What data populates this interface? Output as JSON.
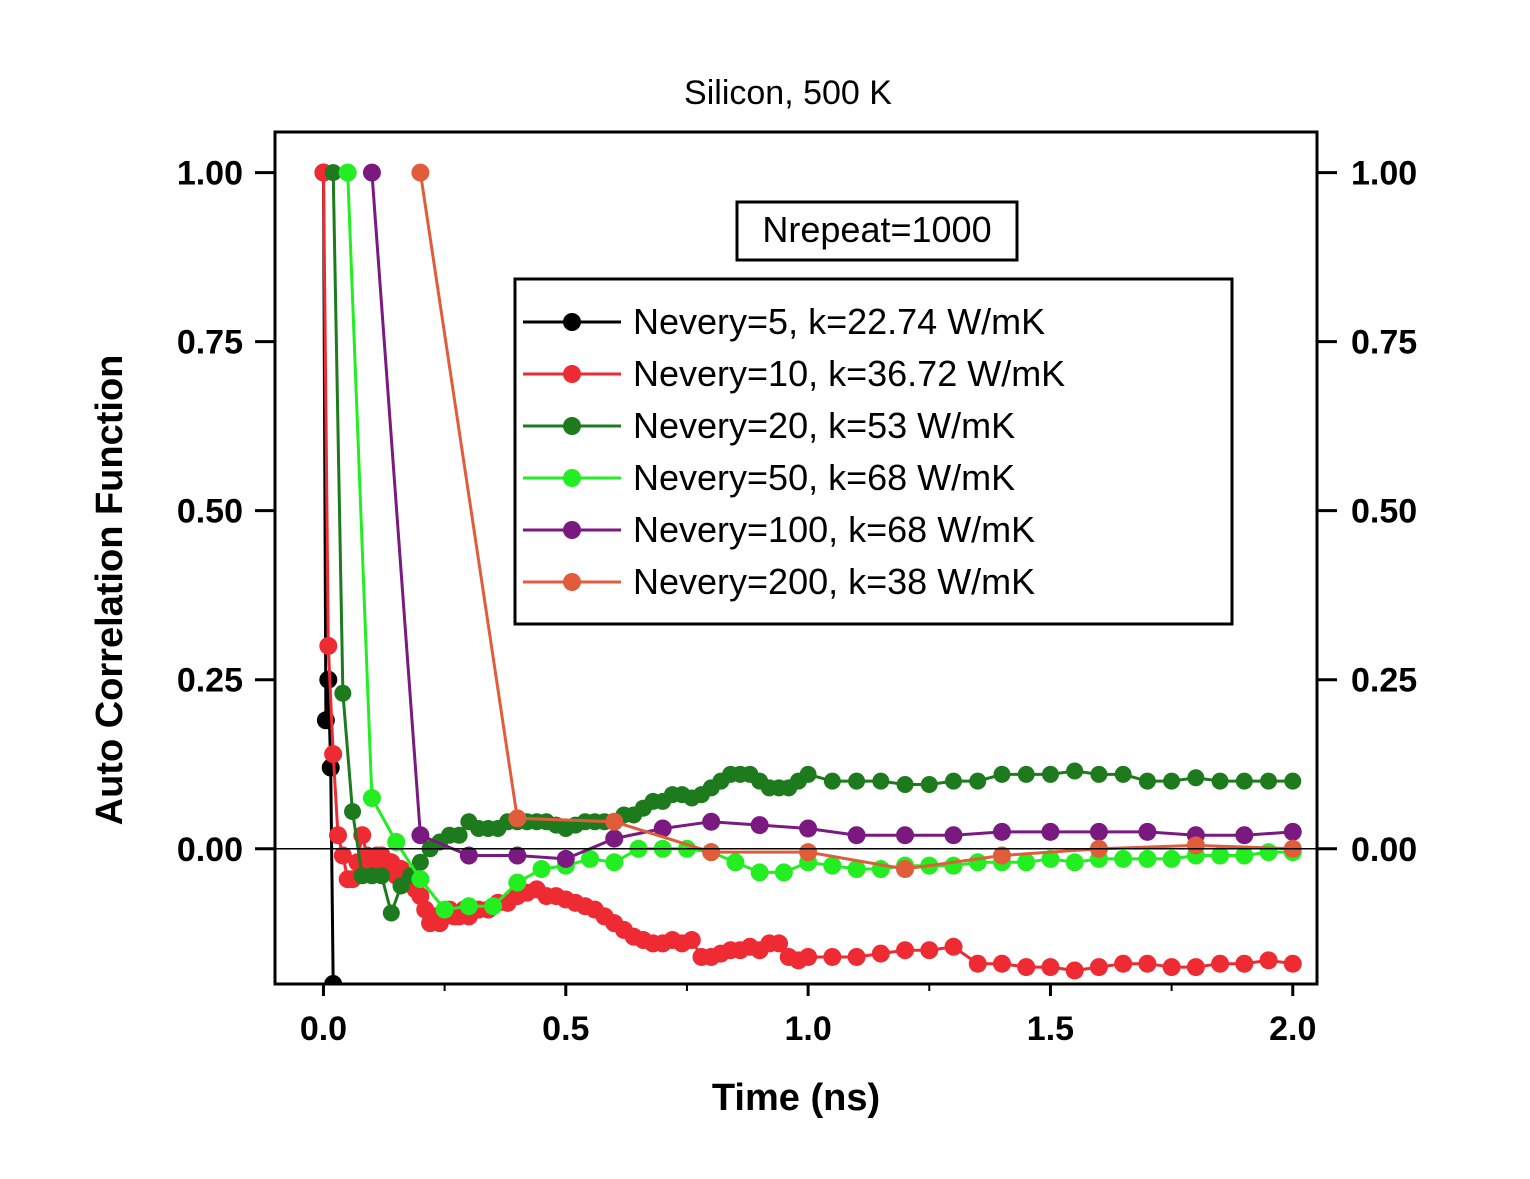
{
  "chart_data": {
    "type": "line",
    "title": "Silicon, 500 K",
    "xlabel": "Time (ns)",
    "ylabel": "Auto Correlation Function",
    "xlim": [
      -0.1,
      2.05
    ],
    "ylim": [
      -0.2,
      1.06
    ],
    "xticks": [
      "0.0",
      "0.5",
      "1.0",
      "1.5",
      "2.0"
    ],
    "xtick_values": [
      0,
      0.5,
      1.0,
      1.5,
      2.0
    ],
    "yticks": [
      "0.00",
      "0.25",
      "0.50",
      "0.75",
      "1.00"
    ],
    "ytick_values": [
      0,
      0.25,
      0.5,
      0.75,
      1.0
    ],
    "right_axis_mirror": true,
    "zero_line": true,
    "legend_position": "upper-right",
    "annotation": "Nrepeat=1000",
    "series": [
      {
        "name": "Nevery=5, k=22.74 W/mK",
        "color": "#000000",
        "x": [
          0.0,
          0.005,
          0.01,
          0.015,
          0.02
        ],
        "y": [
          1.0,
          0.19,
          0.25,
          0.12,
          -0.2
        ]
      },
      {
        "name": "Nevery=10, k=36.72 W/mK",
        "color": "#ee2a33",
        "x": [
          0.0,
          0.01,
          0.02,
          0.03,
          0.04,
          0.05,
          0.06,
          0.07,
          0.08,
          0.09,
          0.1,
          0.11,
          0.12,
          0.13,
          0.14,
          0.15,
          0.16,
          0.17,
          0.18,
          0.19,
          0.2,
          0.21,
          0.22,
          0.23,
          0.24,
          0.25,
          0.26,
          0.27,
          0.28,
          0.29,
          0.3,
          0.32,
          0.34,
          0.36,
          0.38,
          0.4,
          0.42,
          0.44,
          0.46,
          0.48,
          0.5,
          0.52,
          0.54,
          0.56,
          0.58,
          0.6,
          0.62,
          0.64,
          0.66,
          0.68,
          0.7,
          0.72,
          0.74,
          0.76,
          0.78,
          0.8,
          0.82,
          0.84,
          0.86,
          0.88,
          0.9,
          0.92,
          0.94,
          0.96,
          0.98,
          1.0,
          1.05,
          1.1,
          1.15,
          1.2,
          1.25,
          1.3,
          1.35,
          1.4,
          1.45,
          1.5,
          1.55,
          1.6,
          1.65,
          1.7,
          1.75,
          1.8,
          1.85,
          1.9,
          1.95,
          2.0
        ],
        "y": [
          1.0,
          0.3,
          0.14,
          0.02,
          -0.01,
          -0.045,
          -0.045,
          -0.02,
          0.02,
          -0.01,
          -0.02,
          -0.01,
          -0.01,
          -0.03,
          -0.02,
          -0.04,
          -0.03,
          -0.04,
          -0.05,
          -0.06,
          -0.07,
          -0.09,
          -0.11,
          -0.1,
          -0.11,
          -0.1,
          -0.09,
          -0.1,
          -0.1,
          -0.09,
          -0.1,
          -0.09,
          -0.09,
          -0.08,
          -0.08,
          -0.07,
          -0.065,
          -0.06,
          -0.07,
          -0.07,
          -0.075,
          -0.08,
          -0.085,
          -0.09,
          -0.1,
          -0.11,
          -0.12,
          -0.13,
          -0.135,
          -0.14,
          -0.14,
          -0.135,
          -0.14,
          -0.135,
          -0.16,
          -0.16,
          -0.155,
          -0.15,
          -0.15,
          -0.145,
          -0.15,
          -0.14,
          -0.14,
          -0.16,
          -0.165,
          -0.16,
          -0.16,
          -0.16,
          -0.155,
          -0.15,
          -0.15,
          -0.145,
          -0.17,
          -0.17,
          -0.175,
          -0.175,
          -0.18,
          -0.175,
          -0.17,
          -0.17,
          -0.175,
          -0.175,
          -0.17,
          -0.17,
          -0.165,
          -0.17
        ]
      },
      {
        "name": "Nevery=20, k=53 W/mK",
        "color": "#1d7a1d",
        "x": [
          0.02,
          0.04,
          0.06,
          0.08,
          0.1,
          0.12,
          0.14,
          0.16,
          0.18,
          0.2,
          0.22,
          0.24,
          0.26,
          0.28,
          0.3,
          0.32,
          0.34,
          0.36,
          0.38,
          0.4,
          0.42,
          0.44,
          0.46,
          0.48,
          0.5,
          0.52,
          0.54,
          0.56,
          0.58,
          0.6,
          0.62,
          0.64,
          0.66,
          0.68,
          0.7,
          0.72,
          0.74,
          0.76,
          0.78,
          0.8,
          0.82,
          0.84,
          0.86,
          0.88,
          0.9,
          0.92,
          0.94,
          0.96,
          0.98,
          1.0,
          1.05,
          1.1,
          1.15,
          1.2,
          1.25,
          1.3,
          1.35,
          1.4,
          1.45,
          1.5,
          1.55,
          1.6,
          1.65,
          1.7,
          1.75,
          1.8,
          1.85,
          1.9,
          1.95,
          2.0
        ],
        "y": [
          1.0,
          0.23,
          0.055,
          -0.04,
          -0.04,
          -0.04,
          -0.095,
          -0.055,
          -0.04,
          -0.02,
          0.0,
          0.01,
          0.02,
          0.02,
          0.04,
          0.03,
          0.03,
          0.03,
          0.04,
          0.04,
          0.04,
          0.04,
          0.04,
          0.035,
          0.03,
          0.035,
          0.04,
          0.04,
          0.04,
          0.04,
          0.05,
          0.05,
          0.06,
          0.07,
          0.07,
          0.08,
          0.08,
          0.075,
          0.08,
          0.09,
          0.1,
          0.11,
          0.11,
          0.11,
          0.1,
          0.09,
          0.09,
          0.09,
          0.1,
          0.11,
          0.1,
          0.1,
          0.1,
          0.095,
          0.095,
          0.1,
          0.1,
          0.11,
          0.11,
          0.11,
          0.115,
          0.11,
          0.11,
          0.1,
          0.1,
          0.105,
          0.1,
          0.1,
          0.1,
          0.1
        ]
      },
      {
        "name": "Nevery=50, k=68 W/mK",
        "color": "#22ee22",
        "x": [
          0.05,
          0.1,
          0.15,
          0.2,
          0.25,
          0.3,
          0.35,
          0.4,
          0.45,
          0.5,
          0.55,
          0.6,
          0.65,
          0.7,
          0.75,
          0.8,
          0.85,
          0.9,
          0.95,
          1.0,
          1.05,
          1.1,
          1.15,
          1.2,
          1.25,
          1.3,
          1.35,
          1.4,
          1.45,
          1.5,
          1.55,
          1.6,
          1.65,
          1.7,
          1.75,
          1.8,
          1.85,
          1.9,
          1.95,
          2.0
        ],
        "y": [
          1.0,
          0.075,
          0.01,
          -0.045,
          -0.09,
          -0.085,
          -0.085,
          -0.05,
          -0.03,
          -0.025,
          -0.015,
          -0.02,
          0.0,
          0.0,
          0.0,
          -0.005,
          -0.02,
          -0.035,
          -0.035,
          -0.02,
          -0.025,
          -0.03,
          -0.03,
          -0.025,
          -0.025,
          -0.025,
          -0.02,
          -0.02,
          -0.02,
          -0.015,
          -0.02,
          -0.015,
          -0.015,
          -0.015,
          -0.015,
          -0.01,
          -0.01,
          -0.01,
          -0.005,
          -0.005
        ]
      },
      {
        "name": "Nevery=100, k=68 W/mK",
        "color": "#7a1a80",
        "x": [
          0.1,
          0.2,
          0.3,
          0.4,
          0.5,
          0.6,
          0.7,
          0.8,
          0.9,
          1.0,
          1.1,
          1.2,
          1.3,
          1.4,
          1.5,
          1.6,
          1.7,
          1.8,
          1.9,
          2.0
        ],
        "y": [
          1.0,
          0.02,
          -0.01,
          -0.01,
          -0.015,
          0.015,
          0.03,
          0.04,
          0.035,
          0.03,
          0.02,
          0.02,
          0.02,
          0.025,
          0.025,
          0.025,
          0.025,
          0.02,
          0.02,
          0.025
        ]
      },
      {
        "name": "Nevery=200, k=38 W/mK",
        "color": "#e05c3a",
        "x": [
          0.2,
          0.4,
          0.6,
          0.8,
          1.0,
          1.2,
          1.4,
          1.6,
          1.8,
          2.0
        ],
        "y": [
          1.0,
          0.045,
          0.04,
          -0.005,
          -0.005,
          -0.03,
          -0.01,
          0.0,
          0.005,
          0.0
        ]
      }
    ]
  }
}
